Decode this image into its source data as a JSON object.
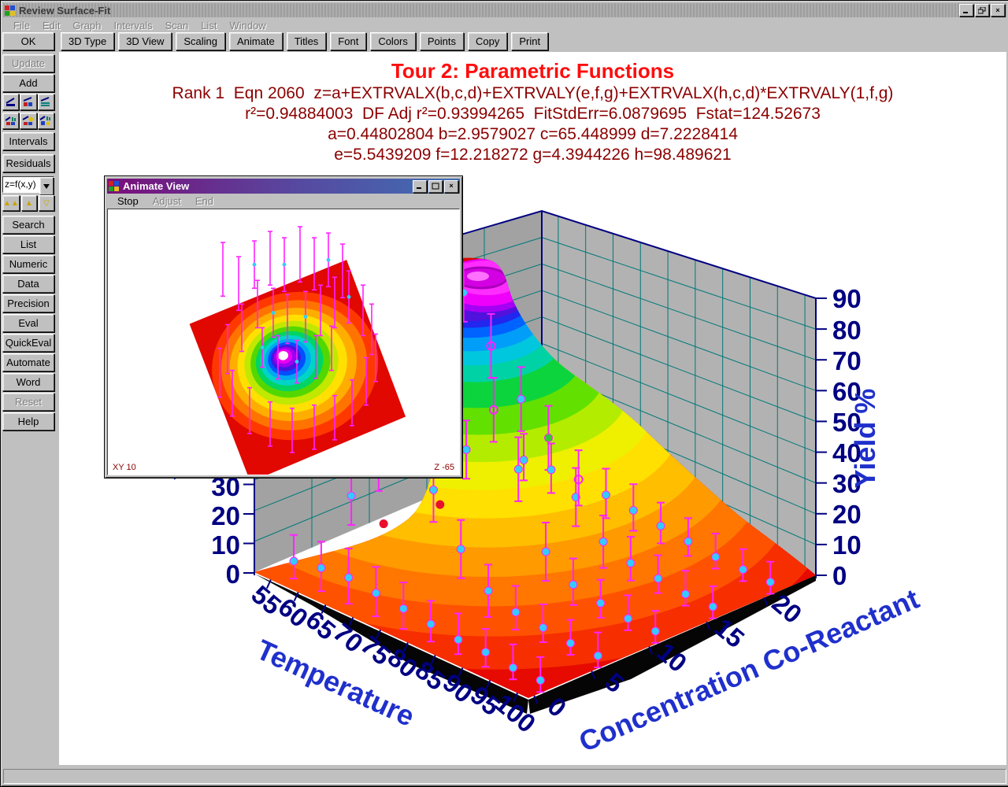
{
  "window": {
    "title": "Review Surface-Fit",
    "menu": [
      "File",
      "Edit",
      "Graph",
      "Intervals",
      "Scan",
      "List",
      "Window"
    ]
  },
  "toolbar": [
    "3D Type",
    "3D View",
    "Scaling",
    "Animate",
    "Titles",
    "Font",
    "Colors",
    "Points",
    "Copy",
    "Print"
  ],
  "sidebar": {
    "ok": "OK",
    "update": "Update",
    "add": "Add",
    "icon_buttons": [
      "graph-line",
      "graph-red-table",
      "graph-teal-table",
      "graph-bars-table",
      "graph-diamond-table",
      "graph-bars-diamond"
    ],
    "intervals": "Intervals",
    "residuals": "Residuals",
    "dropdown_value": "z=f(x,y)",
    "triangles": [
      "▲▲",
      "▲",
      "▽"
    ],
    "search": "Search",
    "list": "List",
    "numeric": "Numeric",
    "data": "Data",
    "precision": "Precision",
    "eval": "Eval",
    "quickeval": "QuickEval",
    "automate": "Automate",
    "word": "Word",
    "reset": "Reset",
    "help": "Help"
  },
  "plot": {
    "title": "Tour 2: Parametric Functions",
    "eqn_line": "Rank 1  Eqn 2060  z=a+EXTRVALX(b,c,d)+EXTRVALY(e,f,g)+EXTRVALX(h,c,d)*EXTRVALY(1,f,g)",
    "stats_line": "r²=0.94884003  DF Adj r²=0.93994265  FitStdErr=6.0879695  Fstat=124.52673",
    "params_line1": "a=0.44802804 b=2.9579027 c=65.448999 d=7.2228414",
    "params_line2": "e=5.5439209 f=12.218272 g=4.3944226 h=98.489621",
    "x_axis": {
      "label": "Temperature",
      "ticks": [
        55,
        60,
        65,
        70,
        75,
        80,
        85,
        90,
        95,
        100
      ]
    },
    "y_axis": {
      "label": "Concentration Co-Reactant",
      "ticks": [
        0,
        5,
        10,
        15,
        20
      ]
    },
    "z_axis": {
      "label": "Yield %",
      "ticks": [
        0,
        10,
        20,
        30,
        40,
        50,
        60,
        70,
        80,
        90
      ],
      "left_ticks": [
        0,
        10,
        20,
        30
      ]
    },
    "colors": {
      "title_red": "#FF0D0D",
      "stats_maroon": "#8B0000",
      "wall_left": "#A2A2A2",
      "wall_right": "#B2B2B2",
      "grid_teal": "#007878",
      "edge_navy": "#000080",
      "tick_text": "#000082",
      "axis_title_blue": "#2030CC",
      "error_bar": "#FF22FF",
      "point_cyan": "#33CBFF",
      "point_green": "#2ECC2E",
      "point_red": "#E8112D"
    }
  },
  "chart_data": {
    "type": "scatter",
    "note": "3D surface fit (rainbow height-mapped peak) with scatter points and error bars",
    "title": "Tour 2: Parametric Functions",
    "xlabel": "Temperature",
    "ylabel": "Concentration Co-Reactant",
    "zlabel": "Yield %",
    "xlim": [
      52,
      102
    ],
    "ylim": [
      0,
      25
    ],
    "zlim": [
      0,
      90
    ],
    "fit": {
      "rank": 1,
      "eqn": 2060,
      "r2": 0.94884003,
      "df_adj_r2": 0.93994265,
      "fit_std_err": 6.0879695,
      "fstat": 124.52673,
      "a": 0.44802804,
      "b": 2.9579027,
      "c": 65.448999,
      "d": 7.2228414,
      "e": 5.5439209,
      "f": 12.218272,
      "g": 4.3944226,
      "h": 98.489621
    },
    "points": [
      [
        55,
        2,
        3,
        9,
        "c"
      ],
      [
        60,
        2,
        5,
        9,
        "c"
      ],
      [
        65,
        2,
        6,
        10,
        "c"
      ],
      [
        70,
        2,
        5,
        9,
        "c"
      ],
      [
        75,
        2,
        4,
        9,
        "c"
      ],
      [
        80,
        2,
        3,
        8,
        "c"
      ],
      [
        85,
        2,
        2,
        9,
        "c"
      ],
      [
        90,
        2,
        2,
        8,
        "c"
      ],
      [
        95,
        2,
        1,
        8,
        "c"
      ],
      [
        100,
        2,
        1,
        8,
        "c"
      ],
      [
        55,
        7,
        17,
        10,
        "c"
      ],
      [
        60,
        7,
        34,
        11,
        "c"
      ],
      [
        65,
        7,
        43,
        11,
        "g"
      ],
      [
        70,
        7,
        32,
        11,
        "c"
      ],
      [
        75,
        7,
        16,
        10,
        "c"
      ],
      [
        80,
        7,
        6,
        9,
        "c"
      ],
      [
        85,
        7,
        3,
        9,
        "c"
      ],
      [
        90,
        7,
        2,
        8,
        "c"
      ],
      [
        95,
        7,
        1,
        8,
        "c"
      ],
      [
        100,
        7,
        1,
        8,
        "c"
      ],
      [
        55,
        12,
        37,
        11,
        "c"
      ],
      [
        60,
        12,
        76,
        11,
        "g"
      ],
      [
        65,
        12,
        87,
        10,
        "c"
      ],
      [
        70,
        12,
        73,
        11,
        "o"
      ],
      [
        75,
        12,
        35,
        11,
        "c"
      ],
      [
        80,
        12,
        11,
        10,
        "c"
      ],
      [
        85,
        12,
        4,
        9,
        "c"
      ],
      [
        90,
        12,
        2,
        8,
        "c"
      ],
      [
        95,
        12,
        1,
        8,
        "c"
      ],
      [
        100,
        12,
        1,
        7,
        "c"
      ],
      [
        55,
        17,
        16,
        10,
        "c"
      ],
      [
        60,
        17,
        34,
        11,
        "o"
      ],
      [
        65,
        17,
        42,
        11,
        "c"
      ],
      [
        70,
        17,
        33,
        11,
        "g"
      ],
      [
        75,
        17,
        17,
        10,
        "c"
      ],
      [
        80,
        17,
        6,
        9,
        "c"
      ],
      [
        85,
        17,
        3,
        9,
        "c"
      ],
      [
        90,
        17,
        2,
        8,
        "c"
      ],
      [
        95,
        17,
        1,
        8,
        "c"
      ],
      [
        100,
        17,
        1,
        7,
        "c"
      ],
      [
        55,
        22,
        4,
        9,
        "c"
      ],
      [
        60,
        22,
        5,
        9,
        "c"
      ],
      [
        65,
        22,
        6,
        10,
        "o"
      ],
      [
        70,
        22,
        5,
        9,
        "c"
      ],
      [
        75,
        22,
        4,
        9,
        "c"
      ],
      [
        80,
        22,
        3,
        8,
        "c"
      ],
      [
        85,
        22,
        2,
        8,
        "c"
      ],
      [
        90,
        22,
        1,
        8,
        "c"
      ],
      [
        95,
        22,
        1,
        7,
        "c"
      ],
      [
        100,
        22,
        1,
        7,
        "c"
      ],
      [
        63,
        6,
        16,
        0,
        "r"
      ],
      [
        67,
        9,
        21,
        0,
        "r"
      ]
    ]
  },
  "animate_window": {
    "title": "Animate View",
    "menu": [
      "Stop",
      "Adjust",
      "End"
    ],
    "status_left": "XY 10",
    "status_right": "Z -65"
  }
}
